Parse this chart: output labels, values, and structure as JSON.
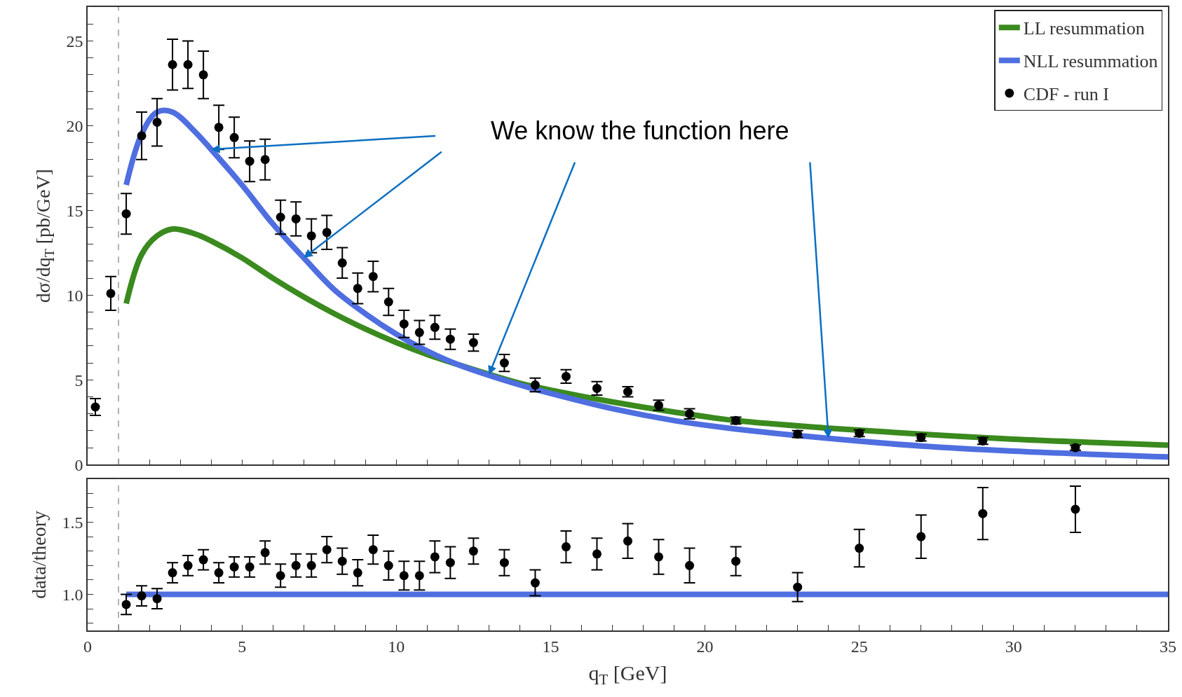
{
  "chart_data": [
    {
      "type": "line",
      "ylabel": "dσ/dq$_{T}$ [pb/GeV]",
      "annotations": [
        {
          "text": "We know the function here",
          "x": 24,
          "y": 1.55
        }
      ],
      "xlim": [
        0,
        35
      ],
      "xticks": [
        0,
        {
          "value": 1,
          "label": null
        },
        {
          "value": 2,
          "label": null
        },
        {
          "value": 3,
          "label": null
        },
        {
          "value": 4,
          "label": null
        },
        5,
        {
          "value": 6,
          "label": null
        },
        {
          "value": 7,
          "label": null
        },
        {
          "value": 8,
          "label": null
        },
        {
          "value": 9,
          "label": null
        },
        10,
        {
          "value": 11,
          "label": null
        },
        {
          "value": 12,
          "label": null
        },
        {
          "value": 13,
          "label": null
        },
        {
          "value": 14,
          "label": null
        },
        15,
        {
          "value": 16,
          "label": null
        },
        {
          "value": 17,
          "label": null
        },
        {
          "value": 18,
          "label": null
        },
        {
          "value": 19,
          "label": null
        },
        20,
        {
          "value": 21,
          "label": null
        },
        {
          "value": 22,
          "label": null
        },
        {
          "value": 23,
          "label": null
        },
        {
          "value": 24,
          "label": null
        },
        25,
        {
          "value": 26,
          "label": null
        },
        {
          "value": 27,
          "label": null
        },
        {
          "value": 28,
          "label": null
        },
        {
          "value": 29,
          "label": null
        },
        30,
        {
          "value": 31,
          "label": null
        },
        {
          "value": 32,
          "label": null
        },
        {
          "value": 33,
          "label": null
        },
        {
          "value": 34,
          "label": null
        },
        35
      ],
      "ylim": [
        0,
        27
      ],
      "yticks": [
        0,
        {
          "value": 1,
          "label": null
        },
        {
          "value": 2,
          "label": null
        },
        {
          "value": 3,
          "label": null
        },
        {
          "value": 4,
          "label": null
        },
        5,
        {
          "value": 6,
          "label": null
        },
        {
          "value": 7,
          "label": null
        },
        {
          "value": 8,
          "label": null
        },
        {
          "value": 9,
          "label": null
        },
        10,
        {
          "value": 11,
          "label": null
        },
        {
          "value": 12,
          "label": null
        },
        {
          "value": 13,
          "label": null
        },
        {
          "value": 14,
          "label": null
        },
        15,
        {
          "value": 16,
          "label": null
        },
        {
          "value": 17,
          "label": null
        },
        {
          "value": 18,
          "label": null
        },
        {
          "value": 19,
          "label": null
        },
        20,
        {
          "value": 21,
          "label": null
        },
        {
          "value": 22,
          "label": null
        },
        {
          "value": 23,
          "label": null
        },
        {
          "value": 24,
          "label": null
        },
        25,
        {
          "value": 26,
          "label": null
        }
      ],
      "tick_labels": "y",
      "legend": "top right",
      "ref_lines": [
        {
          "axis": "x",
          "value": 1,
          "color": "#999999",
          "line_style": "dashed"
        }
      ],
      "series": [
        {
          "name": "LL resummation",
          "color": "#3a8a1e",
          "x": [
            1.25,
            1.75,
            2.25,
            2.75,
            3.5,
            4,
            5,
            6,
            7,
            8,
            9,
            10,
            11,
            12,
            14,
            15,
            17,
            19,
            21,
            24,
            27,
            30,
            35
          ],
          "values": [
            9.5,
            12.4,
            13.5,
            13.9,
            13.6,
            13.2,
            12.2,
            11.0,
            9.9,
            8.9,
            8.0,
            7.2,
            6.5,
            5.9,
            4.8,
            4.4,
            3.7,
            3.1,
            2.6,
            2.15,
            1.8,
            1.5,
            1.15
          ]
        },
        {
          "name": "NLL resummation",
          "color": "#4f6ee0",
          "x": [
            1.25,
            1.75,
            2.25,
            2.75,
            3.5,
            4,
            5,
            6,
            7,
            8,
            9,
            10,
            11,
            12,
            14,
            15,
            17,
            19,
            21,
            24,
            27,
            30,
            35
          ],
          "values": [
            16.5,
            19.5,
            20.8,
            20.8,
            19.6,
            18.6,
            16.5,
            14.2,
            12.2,
            10.3,
            8.9,
            7.7,
            6.7,
            5.9,
            4.7,
            4.2,
            3.3,
            2.6,
            2.1,
            1.55,
            1.1,
            0.8,
            0.45
          ]
        },
        {
          "name": "CDF - run I",
          "type": "scatter",
          "marker": "circle",
          "color": "#000000",
          "x": [
            0.25,
            0.75,
            1.25,
            1.75,
            2.25,
            2.75,
            3.25,
            3.75,
            4.25,
            4.75,
            5.25,
            5.75,
            6.25,
            6.75,
            7.25,
            7.75,
            8.25,
            8.75,
            9.25,
            9.75,
            10.25,
            10.75,
            11.25,
            11.75,
            12.5,
            13.5,
            14.5,
            15.5,
            16.5,
            17.5,
            18.5,
            19.5,
            21,
            23,
            25,
            27,
            29,
            32
          ],
          "values": [
            3.4,
            10.1,
            14.8,
            19.4,
            20.2,
            23.6,
            23.6,
            23.0,
            19.9,
            19.3,
            17.9,
            18.0,
            14.6,
            14.5,
            13.5,
            13.7,
            11.9,
            10.4,
            11.1,
            9.6,
            8.3,
            7.8,
            8.1,
            7.4,
            7.2,
            6.0,
            4.7,
            5.2,
            4.5,
            4.3,
            3.5,
            3.0,
            2.6,
            1.8,
            1.85,
            1.6,
            1.4,
            1.0
          ],
          "errors": [
            0.5,
            1.0,
            1.2,
            1.4,
            1.4,
            1.5,
            1.4,
            1.4,
            1.3,
            1.2,
            1.2,
            1.2,
            1.0,
            1.0,
            1.0,
            1.0,
            0.9,
            0.9,
            0.9,
            0.8,
            0.8,
            0.7,
            0.7,
            0.6,
            0.5,
            0.5,
            0.4,
            0.4,
            0.4,
            0.3,
            0.3,
            0.3,
            0.2,
            0.2,
            0.2,
            0.2,
            0.2,
            0.15
          ]
        }
      ]
    },
    {
      "type": "line",
      "xlabel": "q$_{T}$ [GeV]",
      "ylabel": "data/theory",
      "xlim": [
        0,
        35
      ],
      "xticks": [
        0,
        {
          "value": 1,
          "label": null
        },
        {
          "value": 2,
          "label": null
        },
        {
          "value": 3,
          "label": null
        },
        {
          "value": 4,
          "label": null
        },
        5,
        {
          "value": 6,
          "label": null
        },
        {
          "value": 7,
          "label": null
        },
        {
          "value": 8,
          "label": null
        },
        {
          "value": 9,
          "label": null
        },
        10,
        {
          "value": 11,
          "label": null
        },
        {
          "value": 12,
          "label": null
        },
        {
          "value": 13,
          "label": null
        },
        {
          "value": 14,
          "label": null
        },
        15,
        {
          "value": 16,
          "label": null
        },
        {
          "value": 17,
          "label": null
        },
        {
          "value": 18,
          "label": null
        },
        {
          "value": 19,
          "label": null
        },
        20,
        {
          "value": 21,
          "label": null
        },
        {
          "value": 22,
          "label": null
        },
        {
          "value": 23,
          "label": null
        },
        {
          "value": 24,
          "label": null
        },
        25,
        {
          "value": 26,
          "label": null
        },
        {
          "value": 27,
          "label": null
        },
        {
          "value": 28,
          "label": null
        },
        {
          "value": 29,
          "label": null
        },
        30,
        {
          "value": 31,
          "label": null
        },
        {
          "value": 32,
          "label": null
        },
        {
          "value": 33,
          "label": null
        },
        {
          "value": 34,
          "label": null
        },
        35
      ],
      "ylim": [
        0.75,
        1.8
      ],
      "yticks": [
        {
          "value": 0.8,
          "label": null
        },
        {
          "value": 0.9,
          "label": null
        },
        {
          "value": 1.0,
          "label": "1.0"
        },
        {
          "value": 1.1,
          "label": null
        },
        {
          "value": 1.2,
          "label": null
        },
        {
          "value": 1.3,
          "label": null
        },
        {
          "value": 1.4,
          "label": null
        },
        1.5,
        {
          "value": 1.6,
          "label": null
        },
        {
          "value": 1.7,
          "label": null
        }
      ],
      "legend": false,
      "ref_lines": [
        {
          "axis": "x",
          "value": 1,
          "color": "#999999",
          "line_style": "dashed"
        }
      ],
      "series": [
        {
          "color": "#4f6ee0",
          "x": [
            1.25,
            35
          ],
          "values": [
            1.0,
            1.0
          ]
        },
        {
          "type": "scatter",
          "marker": "circle",
          "color": "#000000",
          "x": [
            1.25,
            1.75,
            2.25,
            2.75,
            3.25,
            3.75,
            4.25,
            4.75,
            5.25,
            5.75,
            6.25,
            6.75,
            7.25,
            7.75,
            8.25,
            8.75,
            9.25,
            9.75,
            10.25,
            10.75,
            11.25,
            11.75,
            12.5,
            13.5,
            14.5,
            15.5,
            16.5,
            17.5,
            18.5,
            19.5,
            21,
            23,
            25,
            27,
            29,
            32
          ],
          "values": [
            0.93,
            0.99,
            0.97,
            1.15,
            1.2,
            1.24,
            1.15,
            1.19,
            1.19,
            1.29,
            1.13,
            1.2,
            1.2,
            1.31,
            1.23,
            1.15,
            1.31,
            1.2,
            1.13,
            1.13,
            1.26,
            1.22,
            1.3,
            1.22,
            1.08,
            1.33,
            1.28,
            1.37,
            1.26,
            1.2,
            1.23,
            1.05,
            1.32,
            1.4,
            1.56,
            1.59
          ],
          "errors": [
            0.07,
            0.07,
            0.07,
            0.07,
            0.07,
            0.07,
            0.07,
            0.07,
            0.07,
            0.08,
            0.08,
            0.08,
            0.08,
            0.09,
            0.09,
            0.09,
            0.1,
            0.1,
            0.1,
            0.1,
            0.11,
            0.11,
            0.09,
            0.09,
            0.09,
            0.11,
            0.11,
            0.12,
            0.12,
            0.12,
            0.1,
            0.1,
            0.13,
            0.15,
            0.18,
            0.16
          ]
        }
      ]
    }
  ]
}
